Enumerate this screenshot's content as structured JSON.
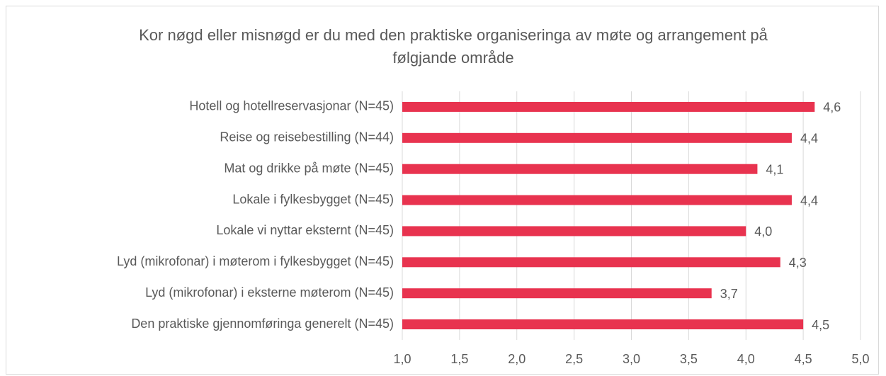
{
  "chart_data": {
    "type": "bar",
    "orientation": "horizontal",
    "title": "Kor nøgd eller misnøgd er du med den praktiske organiseringa av møte og arrangement på følgjande område",
    "categories": [
      "Hotell og hotellreservasjonar (N=45)",
      "Reise og reisebestilling (N=44)",
      "Mat og drikke på møte (N=45)",
      "Lokale i fylkesbygget (N=45)",
      "Lokale vi nyttar eksternt (N=45)",
      "Lyd (mikrofonar) i møterom i fylkesbygget (N=45)",
      "Lyd (mikrofonar) i eksterne møterom (N=45)",
      "Den praktiske gjennomføringa generelt (N=45)"
    ],
    "values": [
      4.6,
      4.4,
      4.1,
      4.4,
      4.0,
      4.3,
      3.7,
      4.5
    ],
    "value_labels": [
      "4,6",
      "4,4",
      "4,1",
      "4,4",
      "4,0",
      "4,3",
      "3,7",
      "4,5"
    ],
    "color": "#e8334f",
    "xlim": [
      1,
      5
    ],
    "xticks": [
      {
        "value": 1,
        "label": "1,0"
      },
      {
        "value": 1.5,
        "label": "1,5"
      },
      {
        "value": 2,
        "label": "2,0"
      },
      {
        "value": 2.5,
        "label": "2,5"
      },
      {
        "value": 3,
        "label": "3,0"
      },
      {
        "value": 3.5,
        "label": "3,5"
      },
      {
        "value": 4,
        "label": "4,0"
      },
      {
        "value": 4.5,
        "label": "4,5"
      },
      {
        "value": 5,
        "label": "5,0"
      }
    ],
    "grid": true
  }
}
